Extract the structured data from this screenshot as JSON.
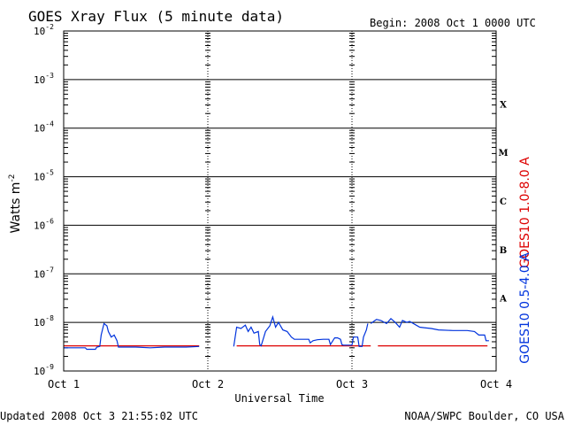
{
  "chart_data": {
    "type": "line",
    "title": "GOES Xray Flux (5 minute data)",
    "begin_label": "Begin:  2008 Oct 1 0000 UTC",
    "ylabel": "Watts m",
    "ylabel_sup": "-2",
    "xlabel": "Universal Time",
    "x_ticks": [
      "Oct 1",
      "Oct 2",
      "Oct 3",
      "Oct 4"
    ],
    "xlim_days": [
      0,
      3
    ],
    "y_scale": "log",
    "ylim": [
      1e-09,
      0.01
    ],
    "y_ticks": [
      {
        "base": "10",
        "exp": "-2"
      },
      {
        "base": "10",
        "exp": "-3"
      },
      {
        "base": "10",
        "exp": "-4"
      },
      {
        "base": "10",
        "exp": "-5"
      },
      {
        "base": "10",
        "exp": "-6"
      },
      {
        "base": "10",
        "exp": "-7"
      },
      {
        "base": "10",
        "exp": "-8"
      },
      {
        "base": "10",
        "exp": "-9"
      }
    ],
    "flare_classes": [
      "X",
      "M",
      "C",
      "B",
      "A"
    ],
    "grid": true,
    "series": [
      {
        "name": "GOES10 1.0-8.0 A",
        "color": "#dd0000",
        "segments": [
          [
            [
              0.0,
              3.3e-09
            ],
            [
              0.94,
              3.3e-09
            ]
          ],
          [
            [
              1.2,
              3.3e-09
            ],
            [
              2.13,
              3.3e-09
            ]
          ],
          [
            [
              2.18,
              3.3e-09
            ],
            [
              2.94,
              3.3e-09
            ]
          ]
        ]
      },
      {
        "name": "GOES10 0.5-4.0 A",
        "color": "#0033dd",
        "segments": [
          [
            [
              0.0,
              3e-09
            ],
            [
              0.15,
              3e-09
            ],
            [
              0.16,
              2.8e-09
            ],
            [
              0.22,
              2.8e-09
            ],
            [
              0.23,
              3.1e-09
            ],
            [
              0.25,
              3.2e-09
            ],
            [
              0.26,
              5.5e-09
            ],
            [
              0.28,
              9.5e-09
            ],
            [
              0.3,
              8.5e-09
            ],
            [
              0.31,
              6.5e-09
            ],
            [
              0.33,
              5e-09
            ],
            [
              0.35,
              5.5e-09
            ],
            [
              0.37,
              4.2e-09
            ],
            [
              0.38,
              3.1e-09
            ],
            [
              0.5,
              3.1e-09
            ],
            [
              0.6,
              3e-09
            ],
            [
              0.7,
              3.1e-09
            ],
            [
              0.85,
              3.1e-09
            ],
            [
              0.94,
              3.2e-09
            ]
          ],
          [
            [
              1.18,
              3.2e-09
            ],
            [
              1.2,
              8e-09
            ],
            [
              1.23,
              7.5e-09
            ],
            [
              1.26,
              8.8e-09
            ],
            [
              1.28,
              6.5e-09
            ],
            [
              1.3,
              8e-09
            ],
            [
              1.32,
              6e-09
            ],
            [
              1.35,
              6.5e-09
            ],
            [
              1.36,
              3.5e-09
            ],
            [
              1.37,
              3.3e-09
            ],
            [
              1.4,
              6.5e-09
            ],
            [
              1.43,
              8.5e-09
            ],
            [
              1.45,
              1.3e-08
            ],
            [
              1.47,
              8e-09
            ],
            [
              1.49,
              1e-08
            ],
            [
              1.52,
              7e-09
            ],
            [
              1.55,
              6.5e-09
            ],
            [
              1.58,
              5e-09
            ],
            [
              1.6,
              4.5e-09
            ],
            [
              1.65,
              4.5e-09
            ],
            [
              1.7,
              4.5e-09
            ],
            [
              1.71,
              3.8e-09
            ],
            [
              1.73,
              4.2e-09
            ],
            [
              1.76,
              4.4e-09
            ],
            [
              1.8,
              4.5e-09
            ],
            [
              1.84,
              4.5e-09
            ],
            [
              1.85,
              3.5e-09
            ],
            [
              1.88,
              4.8e-09
            ],
            [
              1.9,
              4.8e-09
            ],
            [
              1.92,
              4.5e-09
            ],
            [
              1.93,
              3.5e-09
            ],
            [
              1.94,
              3.4e-09
            ],
            [
              2.0,
              3.4e-09
            ],
            [
              2.01,
              5e-09
            ],
            [
              2.04,
              5e-09
            ],
            [
              2.05,
              3.2e-09
            ],
            [
              2.07,
              3.2e-09
            ],
            [
              2.08,
              5e-09
            ],
            [
              2.1,
              7e-09
            ],
            [
              2.11,
              9.5e-09
            ]
          ],
          [
            [
              2.13,
              9.5e-09
            ],
            [
              2.17,
              1.15e-08
            ],
            [
              2.2,
              1.1e-08
            ],
            [
              2.24,
              9.5e-09
            ],
            [
              2.27,
              1.2e-08
            ],
            [
              2.3,
              1e-08
            ],
            [
              2.33,
              8e-09
            ],
            [
              2.35,
              1.1e-08
            ],
            [
              2.38,
              1e-08
            ],
            [
              2.4,
              1.05e-08
            ],
            [
              2.44,
              9e-09
            ],
            [
              2.47,
              8e-09
            ],
            [
              2.5,
              7.8e-09
            ],
            [
              2.55,
              7.5e-09
            ],
            [
              2.6,
              7e-09
            ],
            [
              2.7,
              6.8e-09
            ],
            [
              2.8,
              6.8e-09
            ],
            [
              2.85,
              6.5e-09
            ],
            [
              2.88,
              5.5e-09
            ],
            [
              2.92,
              5.5e-09
            ],
            [
              2.93,
              4.2e-09
            ],
            [
              2.95,
              4.2e-09
            ]
          ]
        ]
      }
    ]
  },
  "footer": {
    "updated": "Updated 2008 Oct  3 21:55:02 UTC",
    "credit": "NOAA/SWPC Boulder, CO USA"
  }
}
